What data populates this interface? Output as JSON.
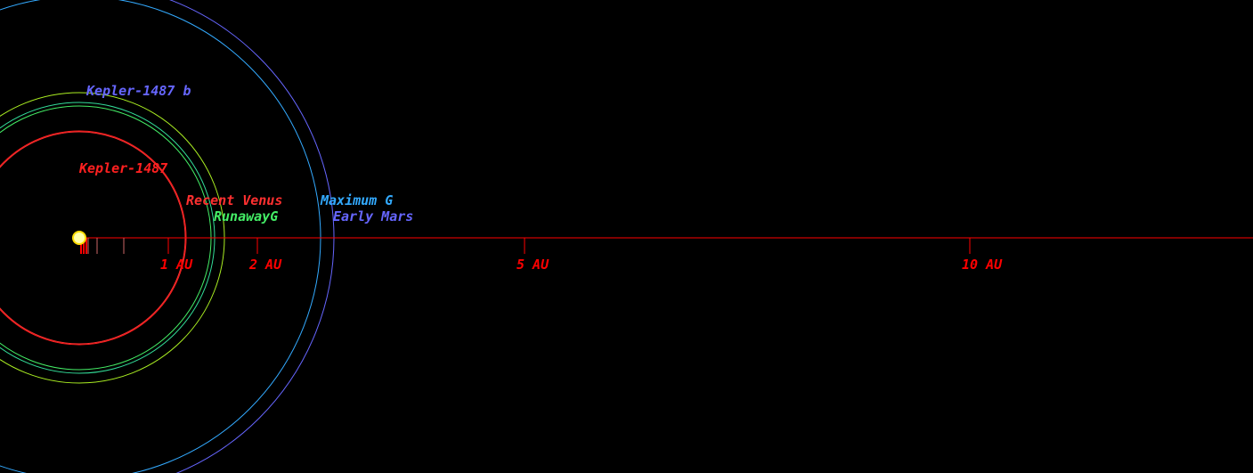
{
  "colors": {
    "background": "#000000",
    "axis": "#ff0000",
    "star_fill": "#ffffaa",
    "star_outline": "#ffdd00"
  },
  "star": {
    "name": "Kepler-1487",
    "color": "#ff2020"
  },
  "axis_ticks": [
    {
      "au": 0.1,
      "label": ""
    },
    {
      "au": 0.2,
      "label": ""
    },
    {
      "au": 0.5,
      "label": ""
    },
    {
      "au": 1,
      "label": "1 AU"
    },
    {
      "au": 2,
      "label": "2 AU"
    },
    {
      "au": 5,
      "label": "5 AU"
    },
    {
      "au": 10,
      "label": "10 AU"
    }
  ],
  "zones": [
    {
      "name": "Recent Venus",
      "radius_au": 1.19,
      "color": "#ff3030"
    },
    {
      "name": "RunawayG",
      "radius_au": 1.48,
      "color": "#44ee66"
    },
    {
      "name": "Maximum G",
      "radius_au": 2.71,
      "color": "#33aaff"
    },
    {
      "name": "Early Mars",
      "radius_au": 2.86,
      "color": "#6666ff"
    }
  ],
  "orbits": [
    {
      "name": "Kepler-1487 b",
      "radius_au": 1.63,
      "color": "#aaee22"
    },
    {
      "name": "",
      "radius_au": 1.52,
      "color": "#33dd99"
    },
    {
      "name": "",
      "radius_au": 1.2,
      "color": "#ff2020"
    }
  ],
  "planet_label": {
    "name": "Kepler-1487 b",
    "color": "#6666ff"
  }
}
